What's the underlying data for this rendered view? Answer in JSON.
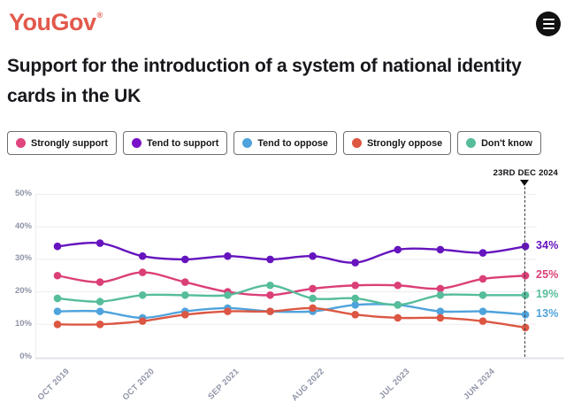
{
  "header": {
    "logo_text": "YouGov",
    "logo_reg": "®",
    "menu_icon": "hamburger-menu-icon"
  },
  "title": "Support for the introduction of a system of national identity cards in the UK",
  "legend": {
    "items": [
      {
        "label": "Strongly support",
        "color": "#e0457d"
      },
      {
        "label": "Tend to support",
        "color": "#7a10c9"
      },
      {
        "label": "Tend to oppose",
        "color": "#4fa3dc"
      },
      {
        "label": "Strongly oppose",
        "color": "#dd5743"
      },
      {
        "label": "Don't know",
        "color": "#56bd9b"
      }
    ]
  },
  "chart_data": {
    "type": "line",
    "title": "Support for the introduction of a system of national identity cards in the UK",
    "n_points": 12,
    "x_tick_labels": [
      "OCT 2019",
      "OCT 2020",
      "SEP 2021",
      "AUG 2022",
      "JUL 2023",
      "JUN 2024"
    ],
    "x_tick_every": 2,
    "y_ticks": [
      "0%",
      "10%",
      "20%",
      "30%",
      "40%",
      "50%"
    ],
    "ylim": [
      0,
      50
    ],
    "grid": true,
    "legend_position": "top",
    "series": [
      {
        "name": "Strongly support",
        "color": "#db3f77",
        "values": [
          25,
          23,
          26,
          23,
          20,
          19,
          21,
          22,
          22,
          21,
          24,
          25
        ],
        "end_label": "25%"
      },
      {
        "name": "Tend to support",
        "color": "#6514be",
        "values": [
          34,
          35,
          31,
          30,
          31,
          30,
          31,
          29,
          33,
          33,
          32,
          34
        ],
        "end_label": "34%"
      },
      {
        "name": "Tend to oppose",
        "color": "#4fa3dc",
        "values": [
          14,
          14,
          12,
          14,
          15,
          14,
          14,
          16,
          16,
          14,
          14,
          13
        ],
        "end_label": "13%"
      },
      {
        "name": "Strongly oppose",
        "color": "#dc5743",
        "values": [
          10,
          10,
          11,
          13,
          14,
          14,
          15,
          13,
          12,
          12,
          11,
          9
        ],
        "end_label": ""
      },
      {
        "name": "Don't know",
        "color": "#56bd9b",
        "values": [
          18,
          17,
          19,
          19,
          19,
          22,
          18,
          18,
          16,
          19,
          19,
          19
        ],
        "end_label": "19%"
      }
    ],
    "annotation": {
      "label": "23RD DEC 2024",
      "x_index": 11
    }
  }
}
